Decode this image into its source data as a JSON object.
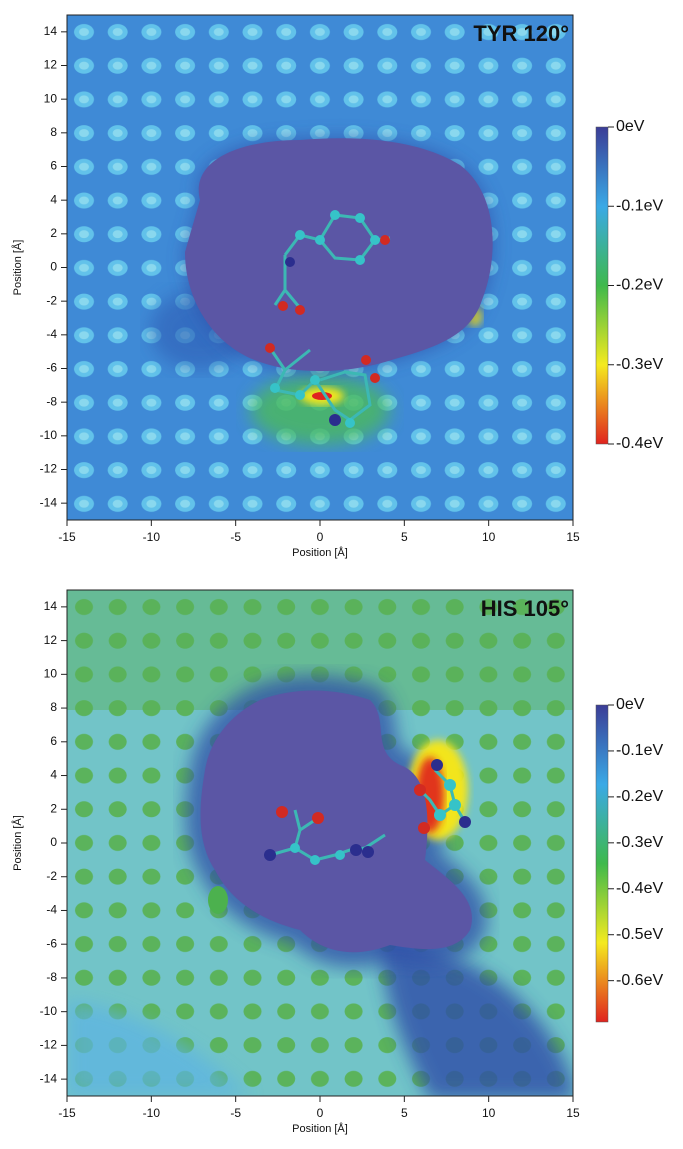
{
  "chart_data": [
    {
      "type": "heatmap",
      "title": "TYR 120°",
      "xlabel": "Position [Å]",
      "ylabel": "Position [Å]",
      "xlim": [
        -15,
        15
      ],
      "ylim": [
        -15,
        15
      ],
      "xticks": [
        -15,
        -10,
        -5,
        0,
        5,
        10,
        15
      ],
      "yticks": [
        -14,
        -12,
        -10,
        -8,
        -6,
        -4,
        -2,
        0,
        2,
        4,
        6,
        8,
        10,
        12,
        14
      ],
      "colorbar": {
        "clim": [
          -0.4,
          0
        ],
        "ticks": [
          {
            "value": 0,
            "label": "0eV"
          },
          {
            "value": -0.1,
            "label": "-0.1eV"
          },
          {
            "value": -0.2,
            "label": "-0.2eV"
          },
          {
            "value": -0.3,
            "label": "-0.3eV"
          },
          {
            "value": -0.4,
            "label": "-0.4eV"
          }
        ],
        "colors": [
          "#3b3d96",
          "#3aa9e6",
          "#3fb94c",
          "#f4ea1f",
          "#e0231f"
        ]
      }
    },
    {
      "type": "heatmap",
      "title": "HIS 105°",
      "xlabel": "Position [Å]",
      "ylabel": "Position [Å]",
      "xlim": [
        -15,
        15
      ],
      "ylim": [
        -15,
        15
      ],
      "xticks": [
        -15,
        -10,
        -5,
        0,
        5,
        10,
        15
      ],
      "yticks": [
        -14,
        -12,
        -10,
        -8,
        -6,
        -4,
        -2,
        0,
        2,
        4,
        6,
        8,
        10,
        12,
        14
      ],
      "colorbar": {
        "clim": [
          -0.69,
          0
        ],
        "ticks": [
          {
            "value": 0,
            "label": "0eV"
          },
          {
            "value": -0.1,
            "label": "-0.1eV"
          },
          {
            "value": -0.2,
            "label": "-0.2eV"
          },
          {
            "value": -0.3,
            "label": "-0.3eV"
          },
          {
            "value": -0.4,
            "label": "-0.4eV"
          },
          {
            "value": -0.5,
            "label": "-0.5eV"
          },
          {
            "value": -0.6,
            "label": "-0.6eV"
          }
        ],
        "colors": [
          "#3b3d96",
          "#3aa9e6",
          "#3fb94c",
          "#f4ea1f",
          "#e0231f"
        ]
      }
    }
  ]
}
